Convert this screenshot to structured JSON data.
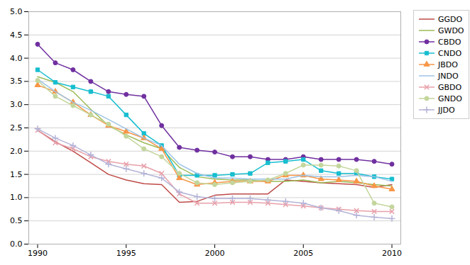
{
  "chart_data": {
    "type": "line",
    "x": [
      1990,
      1991,
      1992,
      1993,
      1994,
      1995,
      1996,
      1997,
      1998,
      1999,
      2000,
      2001,
      2002,
      2003,
      2004,
      2005,
      2006,
      2007,
      2008,
      2009,
      2010
    ],
    "series": [
      {
        "name": "GGDO",
        "color": "#be4b48",
        "values": [
          2.45,
          2.2,
          2.0,
          1.75,
          1.5,
          1.38,
          1.3,
          1.28,
          0.9,
          0.92,
          1.05,
          1.08,
          1.08,
          1.08,
          1.38,
          1.35,
          1.32,
          1.3,
          1.28,
          1.22,
          1.28
        ]
      },
      {
        "name": "GWDO",
        "color": "#9bbb59",
        "values": [
          3.6,
          3.48,
          3.28,
          2.9,
          2.55,
          2.35,
          2.18,
          2.05,
          1.65,
          1.45,
          1.4,
          1.38,
          1.38,
          1.35,
          1.35,
          1.38,
          1.32,
          1.35,
          1.32,
          1.28,
          1.25
        ]
      },
      {
        "name": "CBDO",
        "color": "#7030a0",
        "marker": "circle",
        "values": [
          4.3,
          3.9,
          3.75,
          3.5,
          3.28,
          3.22,
          3.18,
          2.55,
          2.08,
          2.02,
          1.98,
          1.88,
          1.88,
          1.82,
          1.82,
          1.88,
          1.82,
          1.82,
          1.82,
          1.78,
          1.72
        ]
      },
      {
        "name": "CNDO",
        "color": "#17becf",
        "marker": "square",
        "values": [
          3.75,
          3.48,
          3.38,
          3.28,
          3.18,
          2.78,
          2.38,
          2.12,
          1.48,
          1.48,
          1.48,
          1.5,
          1.52,
          1.75,
          1.78,
          1.82,
          1.58,
          1.52,
          1.52,
          1.45,
          1.4
        ]
      },
      {
        "name": "JBDO",
        "color": "#f79646",
        "marker": "triangle",
        "values": [
          3.42,
          3.28,
          3.05,
          2.78,
          2.55,
          2.42,
          2.28,
          2.05,
          1.42,
          1.28,
          1.32,
          1.35,
          1.35,
          1.35,
          1.48,
          1.48,
          1.4,
          1.38,
          1.35,
          1.25,
          1.18
        ]
      },
      {
        "name": "JNDO",
        "color": "#9dc3e6",
        "values": [
          3.55,
          3.28,
          3.05,
          2.88,
          2.68,
          2.48,
          2.28,
          2.12,
          1.72,
          1.52,
          1.42,
          1.42,
          1.4,
          1.4,
          1.4,
          1.48,
          1.45,
          1.45,
          1.48,
          1.45,
          1.35
        ]
      },
      {
        "name": "GBDO",
        "color": "#e8a0aa",
        "marker": "times",
        "values": [
          2.45,
          2.18,
          2.05,
          1.88,
          1.78,
          1.72,
          1.68,
          1.52,
          1.08,
          0.88,
          0.88,
          0.9,
          0.9,
          0.88,
          0.85,
          0.82,
          0.78,
          0.75,
          0.72,
          0.7,
          0.7
        ]
      },
      {
        "name": "GNDO",
        "color": "#c3d69b",
        "marker": "circle",
        "values": [
          3.52,
          3.18,
          2.98,
          2.78,
          2.58,
          2.32,
          2.05,
          1.88,
          1.52,
          1.32,
          1.28,
          1.32,
          1.35,
          1.38,
          1.52,
          1.7,
          1.7,
          1.68,
          1.58,
          0.88,
          0.8
        ]
      },
      {
        "name": "JJDO",
        "color": "#b4b4d8",
        "marker": "plus",
        "values": [
          2.48,
          2.28,
          2.12,
          1.92,
          1.72,
          1.62,
          1.52,
          1.42,
          1.12,
          1.02,
          0.98,
          0.98,
          0.98,
          0.95,
          0.92,
          0.88,
          0.78,
          0.72,
          0.62,
          0.58,
          0.55
        ]
      }
    ],
    "xlim": [
      1989.5,
      2010.5
    ],
    "ylim": [
      0.0,
      5.0
    ],
    "xticks": [
      1990,
      1995,
      2000,
      2005,
      2010
    ],
    "yticks": [
      {
        "value": 0,
        "label": "0.0"
      },
      0.5,
      {
        "value": 1,
        "label": "1.0"
      },
      1.5,
      {
        "value": 2,
        "label": "2.0"
      },
      2.5,
      {
        "value": 3,
        "label": "3.0"
      },
      3.5,
      {
        "value": 4,
        "label": "4.0"
      },
      4.5,
      {
        "value": 5,
        "label": "5.0"
      }
    ],
    "grid": true,
    "legend": "right"
  }
}
